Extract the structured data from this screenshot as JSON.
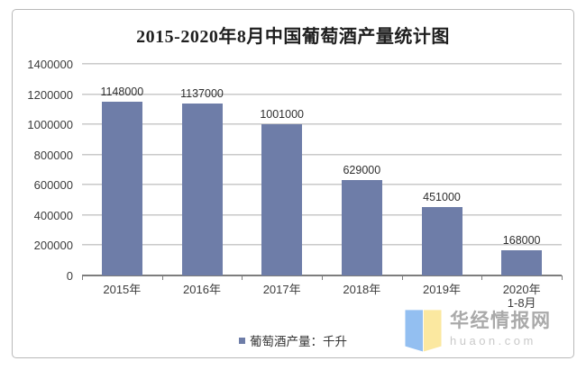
{
  "chart_data": {
    "type": "bar",
    "title": "2015-2020年8月中国葡萄酒产量统计图",
    "categories": [
      "2015年",
      "2016年",
      "2017年",
      "2018年",
      "2019年",
      "2020年"
    ],
    "category_sublabels": [
      "",
      "",
      "",
      "",
      "",
      "1-8月"
    ],
    "values": [
      1148000,
      1137000,
      1001000,
      629000,
      451000,
      168000
    ],
    "data_labels": [
      "1148000",
      "1137000",
      "1001000",
      "629000",
      "451000",
      "168000"
    ],
    "xlabel": "",
    "ylabel": "",
    "ylim": [
      0,
      1400000
    ],
    "y_ticks": [
      1400000,
      1200000,
      1000000,
      800000,
      600000,
      400000,
      200000,
      0
    ],
    "grid": true,
    "legend_label": "葡萄酒产量：千升",
    "legend_position": "bottom",
    "bar_color": "#6E7DA8",
    "grid_color": "#C2C2C2",
    "axis_color": "#7D7D7D"
  },
  "watermark": {
    "site_name": "华经情报网",
    "site_domain": "huaon.com",
    "logo_left_color": "#93BFF1",
    "logo_right_color": "#FBE8A0"
  }
}
